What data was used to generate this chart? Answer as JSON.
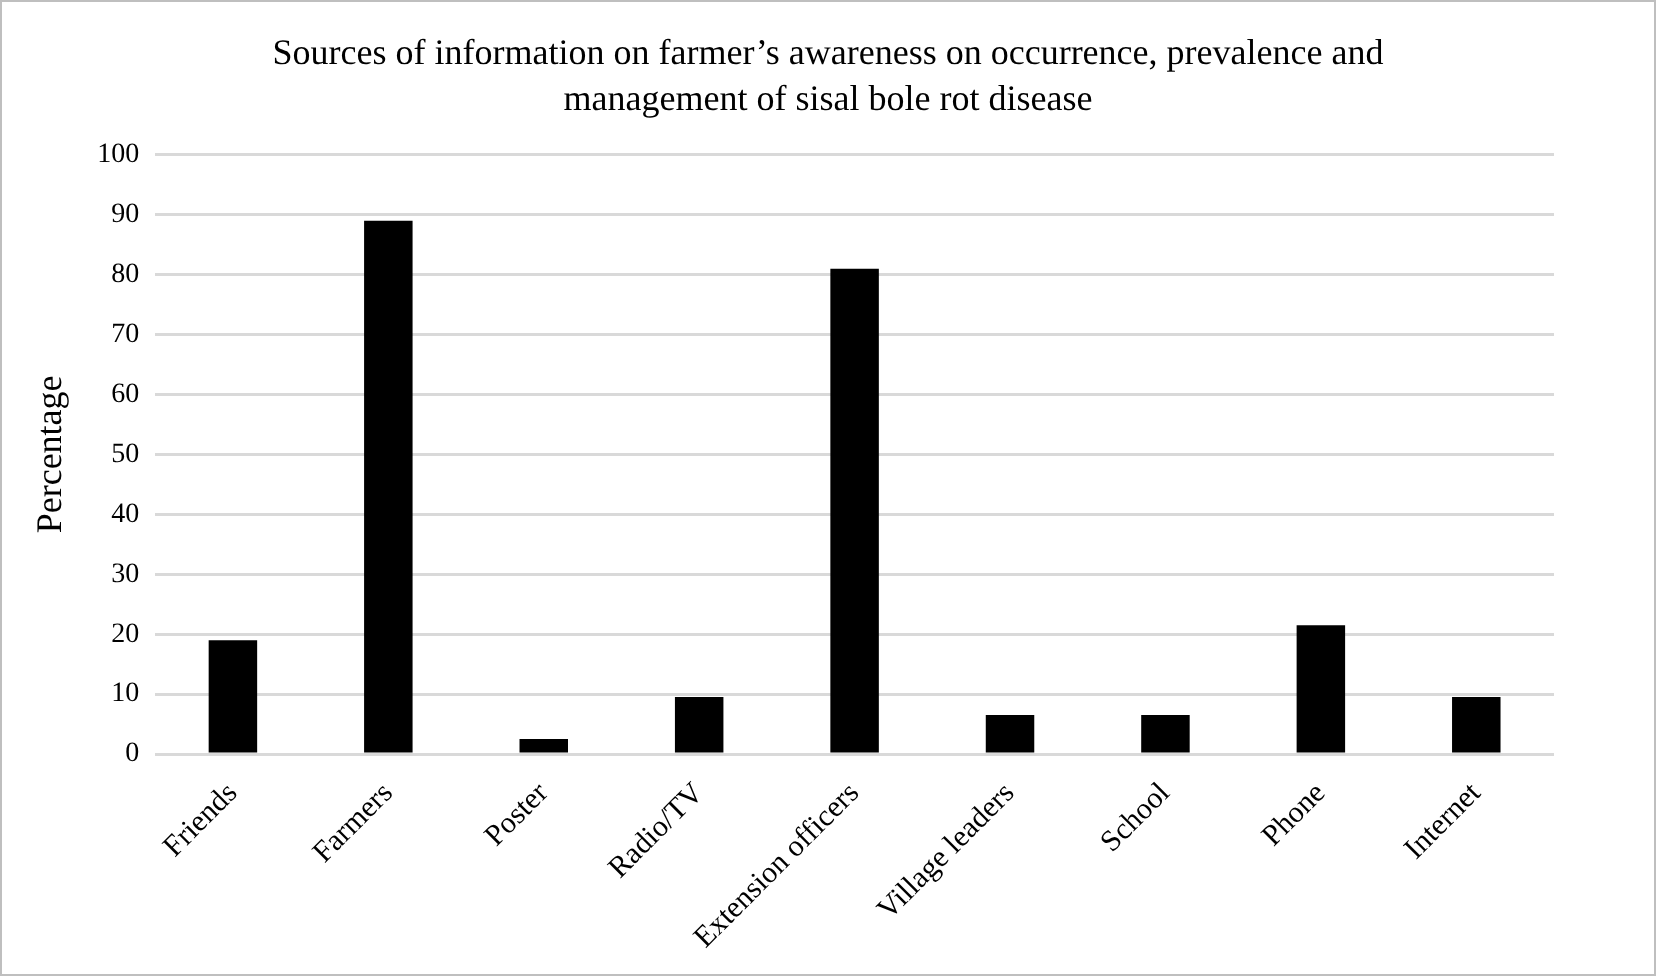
{
  "chart_data": {
    "type": "bar",
    "title": "Sources of information on farmer’s awareness on occurrence, prevalence and management of sisal bole rot disease",
    "ylabel": "Percentage",
    "categories": [
      "Friends",
      "Farmers",
      "Poster",
      "Radio/TV",
      "Extension officers",
      "Village leaders",
      "School",
      "Phone",
      "Internet"
    ],
    "values": [
      19,
      89,
      2.5,
      9.5,
      81,
      6.5,
      6.5,
      21.5,
      9.5
    ],
    "color": "#000000",
    "ylim": [
      0,
      100
    ],
    "yticks": [
      0,
      10,
      20,
      30,
      40,
      50,
      60,
      70,
      80,
      90,
      100
    ],
    "grid": "y",
    "legend": false
  }
}
